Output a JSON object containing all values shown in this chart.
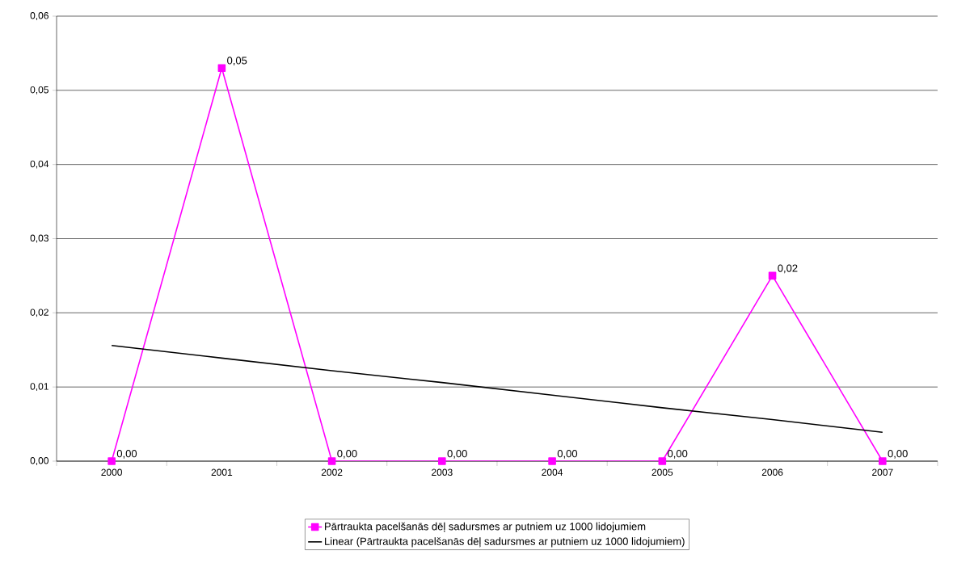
{
  "chart_data": {
    "type": "line",
    "categories": [
      "2000",
      "2001",
      "2002",
      "2003",
      "2004",
      "2005",
      "2006",
      "2007"
    ],
    "series": [
      {
        "name": "Pārtraukta pacelšanās dēļ sadursmes ar putniem uz 1000 lidojumiem",
        "color": "#ff00ff",
        "marker": "square",
        "values": [
          0,
          0.053,
          0,
          0,
          0,
          0,
          0.025,
          0
        ],
        "value_labels": [
          "0,00",
          "0,05",
          "0,00",
          "0,00",
          "0,00",
          "0,00",
          "0,02",
          "0,00"
        ]
      },
      {
        "name": "Linear (Pārtraukta pacelšanās dēļ sadursmes ar putniem uz 1000 lidojumiem)",
        "color": "#000000",
        "marker": "none",
        "values": [
          0.0156,
          0.0139,
          0.0122,
          0.0106,
          0.0089,
          0.0072,
          0.0056,
          0.0039
        ]
      }
    ],
    "ylim": [
      0,
      0.06
    ],
    "yticks": [
      {
        "value": 0,
        "label": "0,00"
      },
      {
        "value": 0.01,
        "label": "0,01"
      },
      {
        "value": 0.02,
        "label": "0,02"
      },
      {
        "value": 0.03,
        "label": "0,03"
      },
      {
        "value": 0.04,
        "label": "0,04"
      },
      {
        "value": 0.05,
        "label": "0,05"
      },
      {
        "value": 0.06,
        "label": "0,06"
      }
    ],
    "grid": "y",
    "legend": "bottom"
  }
}
